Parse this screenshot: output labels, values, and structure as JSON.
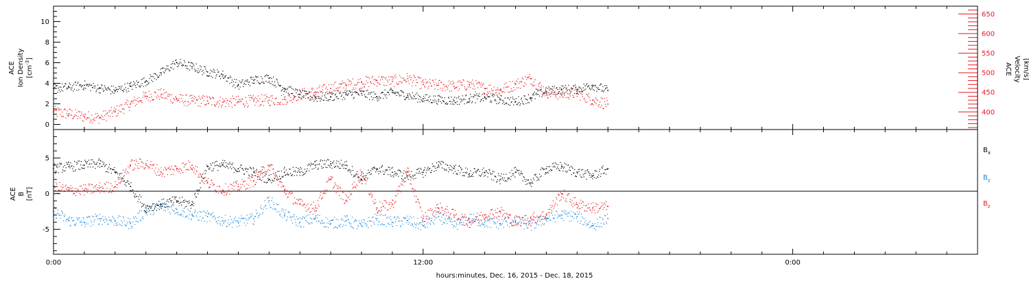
{
  "footer": {
    "xlabel": "hours:minutes, Dec. 16, 2015 - Dec. 18, 2015"
  },
  "colors": {
    "black": "#000000",
    "red": "#e8141c",
    "blue": "#1a86d8",
    "frame": "#000000"
  },
  "chart_data": [
    {
      "type": "scatter",
      "panel": "top",
      "xlabel": "hours:minutes, Dec. 16, 2015 - Dec. 18, 2015",
      "xlim": [
        0,
        1800
      ],
      "x_tick_labels": [
        {
          "x": 0,
          "label": "0:00"
        },
        {
          "x": 720,
          "label": "12:00"
        },
        {
          "x": 1440,
          "label": "0:00"
        }
      ],
      "x_tick_step": 60,
      "left_axis": {
        "label_lines": [
          "ACE",
          "Ion Density"
        ],
        "unit_base": "[cm",
        "unit_sup": "-3",
        "unit_end": "]",
        "ylim": [
          -0.5,
          11.5
        ],
        "ticks": [
          0,
          2,
          4,
          6,
          8,
          10
        ],
        "tick_labels": [
          "0",
          "2",
          "4",
          "6",
          "8",
          "10"
        ]
      },
      "right_axis": {
        "label_lines": [
          "ACE",
          "Velocity",
          "[km/s]"
        ],
        "ylim": [
          355,
          670
        ],
        "ticks": [
          400,
          450,
          500,
          550,
          600,
          650
        ],
        "tick_labels": [
          "400",
          "450",
          "500",
          "550",
          "600",
          "650"
        ],
        "minor_step": 10,
        "color": "#e8141c"
      },
      "series": [
        {
          "color": "#000000",
          "axis": "left",
          "x": [
            0,
            30,
            60,
            90,
            120,
            150,
            180,
            210,
            240,
            270,
            300,
            330,
            360,
            390,
            420,
            450,
            480,
            510,
            540,
            570,
            600,
            630,
            660,
            690,
            720,
            750,
            780,
            810,
            840,
            870,
            900,
            930,
            960,
            990,
            1020,
            1050,
            1080
          ],
          "y": [
            3.5,
            3.6,
            3.8,
            3.5,
            3.3,
            3.7,
            4.2,
            5.0,
            6.0,
            5.6,
            5.1,
            4.8,
            3.8,
            4.3,
            4.5,
            3.5,
            2.9,
            2.6,
            2.7,
            2.9,
            3.0,
            2.7,
            3.1,
            2.8,
            2.5,
            2.4,
            2.3,
            2.5,
            2.6,
            2.4,
            2.2,
            2.6,
            3.2,
            3.4,
            3.4,
            3.8,
            3.3
          ]
        },
        {
          "color": "#e8141c",
          "axis": "right",
          "x": [
            0,
            30,
            60,
            90,
            120,
            150,
            180,
            210,
            240,
            270,
            300,
            330,
            360,
            390,
            420,
            450,
            480,
            510,
            540,
            570,
            600,
            630,
            660,
            690,
            720,
            750,
            780,
            810,
            840,
            870,
            900,
            930,
            960,
            990,
            1020,
            1050,
            1080
          ],
          "y": [
            400,
            395,
            388,
            385,
            400,
            420,
            440,
            445,
            432,
            428,
            428,
            425,
            426,
            428,
            430,
            432,
            445,
            450,
            460,
            468,
            475,
            480,
            478,
            485,
            470,
            468,
            465,
            470,
            460,
            455,
            470,
            485,
            450,
            445,
            448,
            430,
            420
          ]
        }
      ]
    },
    {
      "type": "scatter",
      "panel": "bottom",
      "xlim": [
        0,
        1800
      ],
      "left_axis": {
        "label_lines": [
          "ACE",
          "B"
        ],
        "unit": "[nT]",
        "ylim": [
          -8.5,
          9
        ],
        "ticks": [
          -5,
          0,
          5
        ],
        "tick_labels": [
          "-5",
          "0",
          "5"
        ]
      },
      "zero_line": true,
      "legend_position": "right",
      "series": [
        {
          "name": "B",
          "sub": "x",
          "color": "#000000",
          "x": [
            0,
            30,
            60,
            90,
            120,
            150,
            180,
            210,
            240,
            270,
            300,
            330,
            360,
            390,
            420,
            450,
            480,
            510,
            540,
            570,
            600,
            630,
            660,
            690,
            720,
            750,
            780,
            810,
            840,
            870,
            900,
            930,
            960,
            990,
            1020,
            1050,
            1080
          ],
          "y": [
            3.5,
            3.8,
            4.0,
            4.2,
            3.0,
            1.0,
            -2.0,
            -1.5,
            -1.0,
            -1.5,
            3.8,
            4.0,
            3.5,
            3.0,
            2.0,
            3.0,
            3.0,
            4.0,
            4.2,
            4.0,
            2.0,
            3.5,
            3.0,
            2.5,
            3.0,
            4.0,
            3.5,
            2.8,
            3.0,
            2.0,
            3.0,
            1.5,
            3.5,
            3.8,
            3.0,
            2.5,
            3.5
          ]
        },
        {
          "name": "B",
          "sub": "y",
          "color": "#1a86d8",
          "x": [
            0,
            30,
            60,
            90,
            120,
            150,
            180,
            210,
            240,
            270,
            300,
            330,
            360,
            390,
            420,
            450,
            480,
            510,
            540,
            570,
            600,
            630,
            660,
            690,
            720,
            750,
            780,
            810,
            840,
            870,
            900,
            930,
            960,
            990,
            1020,
            1050,
            1080
          ],
          "y": [
            -2.5,
            -3.8,
            -4.0,
            -3.5,
            -3.8,
            -4.2,
            -2.5,
            -1.8,
            -2.2,
            -3.0,
            -3.2,
            -3.8,
            -4.0,
            -3.5,
            -1.0,
            -3.0,
            -4.0,
            -3.5,
            -4.2,
            -3.8,
            -4.5,
            -3.5,
            -4.0,
            -3.8,
            -4.5,
            -3.2,
            -4.5,
            -3.5,
            -4.0,
            -4.2,
            -3.8,
            -4.5,
            -3.5,
            -3.0,
            -3.2,
            -4.5,
            -3.5
          ]
        },
        {
          "name": "B",
          "sub": "z",
          "color": "#e8141c",
          "x": [
            0,
            30,
            60,
            90,
            120,
            150,
            180,
            210,
            240,
            270,
            300,
            330,
            360,
            390,
            420,
            450,
            480,
            510,
            540,
            570,
            600,
            630,
            660,
            690,
            720,
            750,
            780,
            810,
            840,
            870,
            900,
            930,
            960,
            990,
            1020,
            1050,
            1080
          ],
          "y": [
            1.0,
            0.5,
            0.5,
            0.8,
            1.0,
            4.0,
            4.2,
            3.0,
            3.5,
            4.0,
            1.5,
            0.5,
            1.0,
            1.8,
            4.0,
            0.5,
            -1.5,
            -2.0,
            2.0,
            -1.0,
            3.0,
            -2.0,
            -1.5,
            3.0,
            -3.5,
            -2.0,
            -3.0,
            -4.0,
            -3.0,
            -2.5,
            -4.0,
            -3.5,
            -3.0,
            0.0,
            -1.5,
            -2.0,
            -1.8
          ]
        }
      ]
    }
  ]
}
